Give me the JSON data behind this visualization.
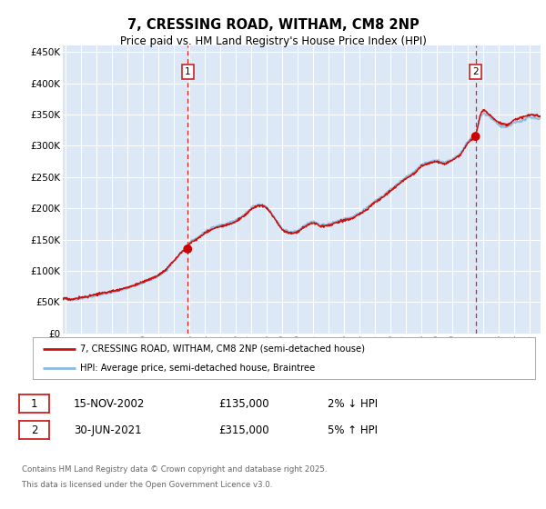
{
  "title": "7, CRESSING ROAD, WITHAM, CM8 2NP",
  "subtitle": "Price paid vs. HM Land Registry's House Price Index (HPI)",
  "bg_color": "#ffffff",
  "plot_bg_color": "#dce8f5",
  "grid_color": "#ffffff",
  "ylabel_ticks": [
    "£0",
    "£50K",
    "£100K",
    "£150K",
    "£200K",
    "£250K",
    "£300K",
    "£350K",
    "£400K",
    "£450K"
  ],
  "ytick_vals": [
    0,
    50000,
    100000,
    150000,
    200000,
    250000,
    300000,
    350000,
    400000,
    450000
  ],
  "ylim": [
    0,
    460000
  ],
  "xlim_start": 1994.8,
  "xlim_end": 2025.7,
  "transaction1_x": 2002.88,
  "transaction1_y": 135000,
  "transaction2_x": 2021.5,
  "transaction2_y": 315000,
  "vline_color": "#dd2222",
  "marker_color": "#cc0000",
  "legend_label1": "7, CRESSING ROAD, WITHAM, CM8 2NP (semi-detached house)",
  "legend_label2": "HPI: Average price, semi-detached house, Braintree",
  "line1_color": "#cc1111",
  "line2_color": "#88bbdd",
  "box1_date": "15-NOV-2002",
  "box1_price": "£135,000",
  "box1_pct": "2% ↓ HPI",
  "box2_date": "30-JUN-2021",
  "box2_price": "£315,000",
  "box2_pct": "5% ↑ HPI",
  "footnote1": "Contains HM Land Registry data © Crown copyright and database right 2025.",
  "footnote2": "This data is licensed under the Open Government Licence v3.0.",
  "xtick_years": [
    1995,
    1996,
    1997,
    1998,
    1999,
    2000,
    2001,
    2002,
    2003,
    2004,
    2005,
    2006,
    2007,
    2008,
    2009,
    2010,
    2011,
    2012,
    2013,
    2014,
    2015,
    2016,
    2017,
    2018,
    2019,
    2020,
    2021,
    2022,
    2023,
    2024,
    2025
  ]
}
